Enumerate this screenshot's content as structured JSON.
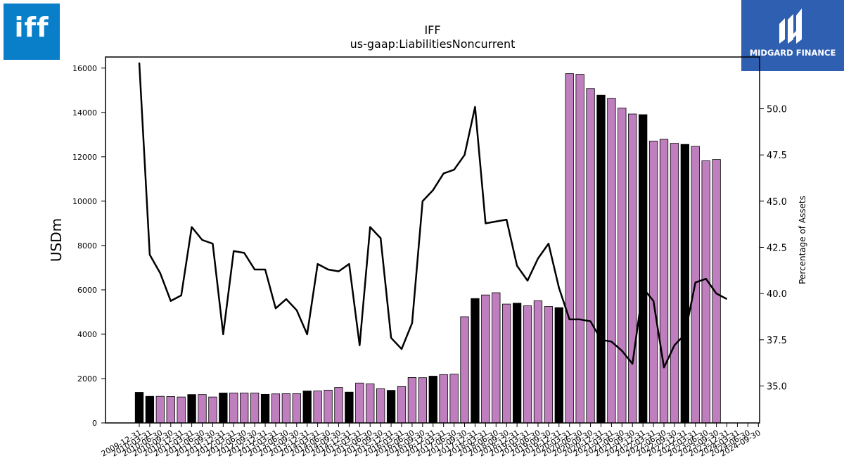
{
  "logos": {
    "left_text": "iff",
    "right_text": "MIDGARD FINANCE"
  },
  "colors": {
    "bar_purple": "#bf7fbf",
    "bar_black": "#000000",
    "line": "#000000",
    "logo_left_bg": "#0a7fc9",
    "logo_right_bg": "#2f5fb1"
  },
  "chart_data": {
    "type": "bar",
    "title": "IFF",
    "subtitle": "us-gaap:LiabilitiesNoncurrent",
    "ylabel": "USDm",
    "y2label": "Percentage of Assets",
    "ylim": [
      0,
      16500
    ],
    "y2lim": [
      33.0,
      52.8
    ],
    "yticks": [
      "0",
      "2000",
      "4000",
      "6000",
      "8000",
      "10000",
      "12000",
      "14000",
      "16000"
    ],
    "y2ticks": [
      "35.0",
      "37.5",
      "40.0",
      "42.5",
      "45.0",
      "47.5",
      "50.0"
    ],
    "grid": false,
    "categories": [
      "2009-12-31",
      "2010-03-31",
      "2010-06-30",
      "2010-09-30",
      "2010-12-31",
      "2011-03-31",
      "2011-06-30",
      "2011-09-30",
      "2011-12-31",
      "2012-03-31",
      "2012-06-30",
      "2012-09-30",
      "2012-12-31",
      "2013-03-31",
      "2013-06-30",
      "2013-09-30",
      "2013-12-31",
      "2014-03-31",
      "2014-06-30",
      "2014-09-30",
      "2014-12-31",
      "2015-03-31",
      "2015-06-30",
      "2015-09-30",
      "2015-12-31",
      "2016-03-31",
      "2016-06-30",
      "2016-09-30",
      "2016-12-31",
      "2017-03-31",
      "2017-06-30",
      "2017-09-30",
      "2017-12-31",
      "2018-03-31",
      "2018-06-30",
      "2018-09-30",
      "2018-12-31",
      "2019-03-31",
      "2019-06-30",
      "2019-09-30",
      "2019-12-31",
      "2020-03-31",
      "2020-06-30",
      "2020-09-30",
      "2020-12-31",
      "2021-03-31",
      "2021-06-30",
      "2021-09-30",
      "2021-12-31",
      "2022-03-31",
      "2022-06-30",
      "2022-09-30",
      "2022-12-31",
      "2023-03-31",
      "2023-06-30",
      "2023-09-30",
      "2023-12-31",
      "2024-03-31",
      "2024-06-30",
      "2024-09-30"
    ],
    "xtick_labels": [
      "2009-12-31",
      "2010-03-31",
      "2010-06-30",
      "2010-09-30",
      "2010-12-31",
      "2011-03-31",
      "2011-06-30",
      "2011-09-30",
      "2011-12-31",
      "2012-03-31",
      "2012-06-30",
      "2012-09-30",
      "2012-12-31",
      "2013-03-31",
      "2013-06-30",
      "2013-09-30",
      "2013-12-31",
      "2014-03-31",
      "2014-06-30",
      "2014-09-30",
      "2014-12-31",
      "2015-03-31",
      "2015-06-30",
      "2015-09-30",
      "2015-12-31",
      "2016-03-31",
      "2016-06-30",
      "2016-09-30",
      "2016-12-31",
      "2017-03-31",
      "2017-06-30",
      "2017-09-30",
      "2017-12-31",
      "2018-03-31",
      "2018-06-30",
      "2018-09-30",
      "2018-12-31",
      "2019-03-31",
      "2019-06-30",
      "2019-09-30",
      "2019-12-31",
      "2020-03-31",
      "2020-06-30",
      "2020-09-30",
      "2020-12-31",
      "2021-03-31",
      "2021-06-30",
      "2021-09-30",
      "2021-12-31",
      "2022-03-31",
      "2022-06-30",
      "2022-09-30",
      "2022-12-31",
      "2023-03-31",
      "2023-06-30",
      "2023-09-30",
      "2023-12-31",
      "2024-03-31",
      "2024-06-30",
      "2024-09-30"
    ],
    "series": [
      {
        "type": "bar",
        "axis": "left",
        "values": [
          1380,
          1200,
          1200,
          1190,
          1170,
          1280,
          1280,
          1170,
          1350,
          1350,
          1350,
          1350,
          1290,
          1310,
          1320,
          1320,
          1440,
          1440,
          1480,
          1600,
          1390,
          1800,
          1760,
          1540,
          1470,
          1640,
          2050,
          2040,
          2110,
          2180,
          2200,
          4790,
          5610,
          5770,
          5870,
          5360,
          5400,
          5280,
          5510,
          5250,
          5200,
          15750,
          15720,
          15080,
          14780,
          14640,
          14200,
          13930,
          13900,
          12710,
          12790,
          12610,
          12560,
          12470,
          11820,
          11880,
          null,
          null,
          null,
          null
        ],
        "highlight": [
          true,
          true,
          false,
          false,
          false,
          true,
          false,
          false,
          true,
          false,
          false,
          false,
          true,
          false,
          false,
          false,
          true,
          false,
          false,
          false,
          true,
          false,
          false,
          false,
          true,
          false,
          false,
          false,
          true,
          false,
          false,
          false,
          true,
          false,
          false,
          false,
          true,
          false,
          false,
          false,
          true,
          false,
          false,
          false,
          true,
          false,
          false,
          false,
          true,
          false,
          false,
          false,
          true,
          false,
          false,
          false,
          false,
          false,
          false,
          false
        ]
      },
      {
        "type": "line",
        "axis": "right",
        "values": [
          52.5,
          42.1,
          41.1,
          39.6,
          39.9,
          43.6,
          42.9,
          42.7,
          37.8,
          42.3,
          42.2,
          41.3,
          41.3,
          39.2,
          39.7,
          39.1,
          37.8,
          41.6,
          41.3,
          41.2,
          41.6,
          37.2,
          43.6,
          43.0,
          37.6,
          37.0,
          38.4,
          45.0,
          45.6,
          46.5,
          46.7,
          47.5,
          50.1,
          43.8,
          43.9,
          44.0,
          41.5,
          40.7,
          41.9,
          42.7,
          40.3,
          38.6,
          38.6,
          38.5,
          37.5,
          37.4,
          36.9,
          36.2,
          40.3,
          39.6,
          36.0,
          37.2,
          37.8,
          40.6,
          40.8,
          40.0,
          39.7,
          null,
          null,
          null
        ]
      }
    ]
  }
}
